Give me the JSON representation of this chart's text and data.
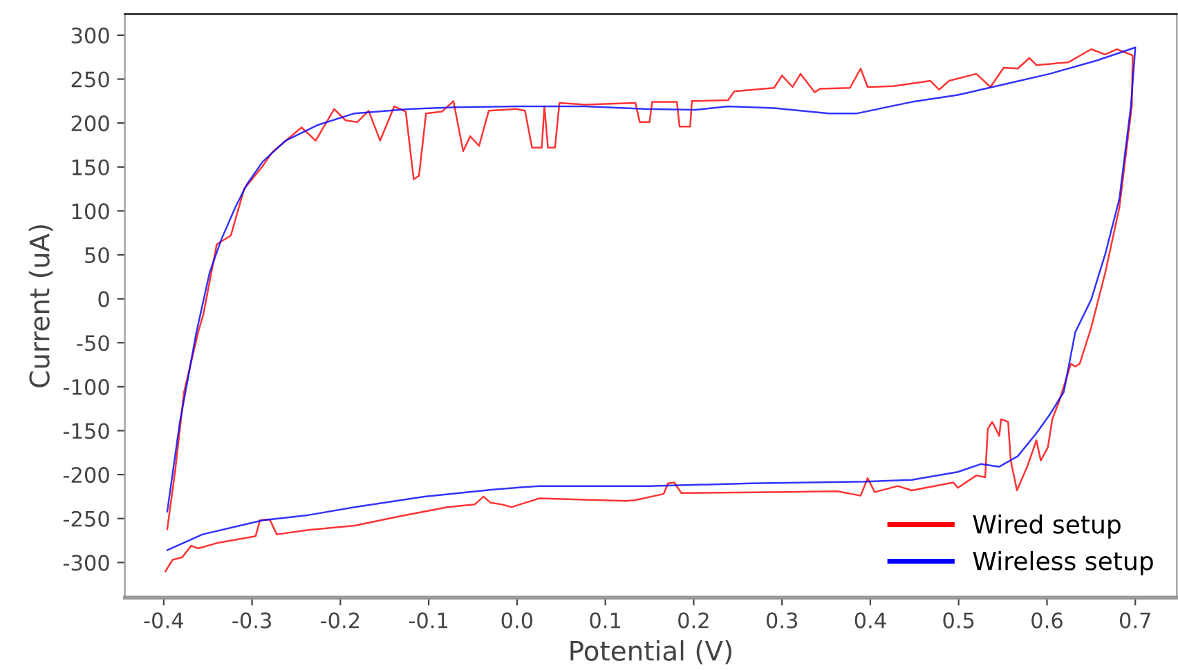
{
  "chart_data": {
    "type": "line",
    "xlabel": "Potential (V)",
    "ylabel": "Current (uA)",
    "xlim": [
      -0.444,
      0.747
    ],
    "ylim": [
      -340,
      324
    ],
    "xticks": [
      -0.4,
      -0.3,
      -0.2,
      {
        "value": -0.1,
        "label": "-0.1"
      },
      {
        "value": 0,
        "label": "0.0"
      },
      0.1,
      0.2,
      0.3,
      0.4,
      0.5,
      0.6,
      0.7
    ],
    "yticks": [
      -300,
      -250,
      -200,
      -150,
      -100,
      -50,
      0,
      50,
      100,
      150,
      200,
      250,
      300
    ],
    "grid": false,
    "legend": "bottom right",
    "marker": "none",
    "line_style": "solid",
    "series": [
      {
        "name": "Wired setup",
        "color": "#ff0000",
        "x": [
          -0.396,
          -0.387,
          -0.377,
          -0.361,
          -0.355,
          -0.34,
          -0.324,
          -0.309,
          -0.288,
          -0.277,
          -0.244,
          -0.228,
          -0.207,
          -0.194,
          -0.181,
          -0.168,
          -0.155,
          -0.139,
          -0.126,
          -0.117,
          -0.111,
          -0.103,
          -0.085,
          -0.072,
          -0.061,
          -0.053,
          -0.043,
          -0.032,
          -0.001,
          0.009,
          0.017,
          0.028,
          0.031,
          0.035,
          0.043,
          0.048,
          0.077,
          0.134,
          0.139,
          0.15,
          0.153,
          0.181,
          0.184,
          0.196,
          0.198,
          0.239,
          0.246,
          0.291,
          0.3,
          0.312,
          0.321,
          0.337,
          0.343,
          0.377,
          0.389,
          0.397,
          0.426,
          0.468,
          0.478,
          0.489,
          0.52,
          0.536,
          0.551,
          0.567,
          0.58,
          0.588,
          0.624,
          0.65,
          0.666,
          0.679,
          0.697,
          0.696,
          0.682,
          0.666,
          0.65,
          0.637,
          0.632,
          0.627,
          0.614,
          0.606,
          0.601,
          0.593,
          0.588,
          0.578,
          0.566,
          0.559,
          0.556,
          0.548,
          0.546,
          0.538,
          0.533,
          0.53,
          0.52,
          0.499,
          0.494,
          0.447,
          0.431,
          0.405,
          0.397,
          0.389,
          0.363,
          0.291,
          0.186,
          0.178,
          0.171,
          0.166,
          0.134,
          0.124,
          0.025,
          -0.006,
          -0.017,
          -0.03,
          -0.038,
          -0.048,
          -0.079,
          -0.131,
          -0.184,
          -0.236,
          -0.272,
          -0.28,
          -0.291,
          -0.296,
          -0.34,
          -0.361,
          -0.369,
          -0.379,
          -0.39,
          -0.398
        ],
        "values": [
          -262,
          -195,
          -106,
          -38,
          -17,
          62,
          72,
          125,
          151,
          167,
          195,
          180,
          216,
          203,
          201,
          214,
          180,
          219,
          213,
          136,
          140,
          211,
          213,
          225,
          168,
          185,
          174,
          214,
          216,
          214,
          172,
          172,
          219,
          172,
          172,
          223,
          221,
          223,
          201,
          201,
          224,
          224,
          196,
          196,
          225,
          226,
          236,
          240,
          254,
          241,
          256,
          235,
          239,
          240,
          262,
          241,
          242,
          248,
          238,
          248,
          256,
          241,
          263,
          262,
          274,
          266,
          269,
          284,
          278,
          284,
          277,
          219,
          104,
          30,
          -33,
          -74,
          -77,
          -74,
          -116,
          -137,
          -169,
          -184,
          -161,
          -190,
          -218,
          -184,
          -140,
          -137,
          -156,
          -140,
          -148,
          -203,
          -201,
          -215,
          -209,
          -218,
          -213,
          -220,
          -204,
          -224,
          -219,
          -220,
          -221,
          -209,
          -210,
          -222,
          -229,
          -230,
          -227,
          -237,
          -234,
          -232,
          -225,
          -234,
          -237,
          -247,
          -258,
          -263,
          -268,
          -251,
          -252,
          -270,
          -278,
          -284,
          -281,
          -294,
          -297,
          -310
        ]
      },
      {
        "name": "Wireless setup",
        "color": "#0000ff",
        "x": [
          -0.396,
          -0.382,
          -0.363,
          -0.348,
          -0.335,
          -0.319,
          -0.306,
          -0.288,
          -0.262,
          -0.225,
          -0.184,
          -0.121,
          -0.069,
          -0.001,
          0.077,
          0.145,
          0.202,
          0.239,
          0.291,
          0.353,
          0.385,
          0.447,
          0.499,
          0.551,
          0.603,
          0.656,
          0.7,
          0.695,
          0.682,
          0.666,
          0.65,
          0.632,
          0.619,
          0.603,
          0.588,
          0.567,
          0.546,
          0.525,
          0.499,
          0.447,
          0.395,
          0.265,
          0.15,
          0.025,
          -0.027,
          -0.105,
          -0.184,
          -0.236,
          -0.288,
          -0.356,
          -0.396
        ],
        "values": [
          -242,
          -142,
          -38,
          30,
          67,
          104,
          130,
          156,
          180,
          198,
          211,
          216,
          218,
          219,
          219,
          216,
          215,
          219,
          217,
          211,
          211,
          224,
          232,
          244,
          256,
          271,
          286,
          219,
          114,
          51,
          -1,
          -38,
          -106,
          -132,
          -153,
          -179,
          -191,
          -188,
          -197,
          -206,
          -208,
          -210,
          -213,
          -213,
          -217,
          -225,
          -237,
          -246,
          -252,
          -268,
          -286
        ]
      }
    ]
  }
}
